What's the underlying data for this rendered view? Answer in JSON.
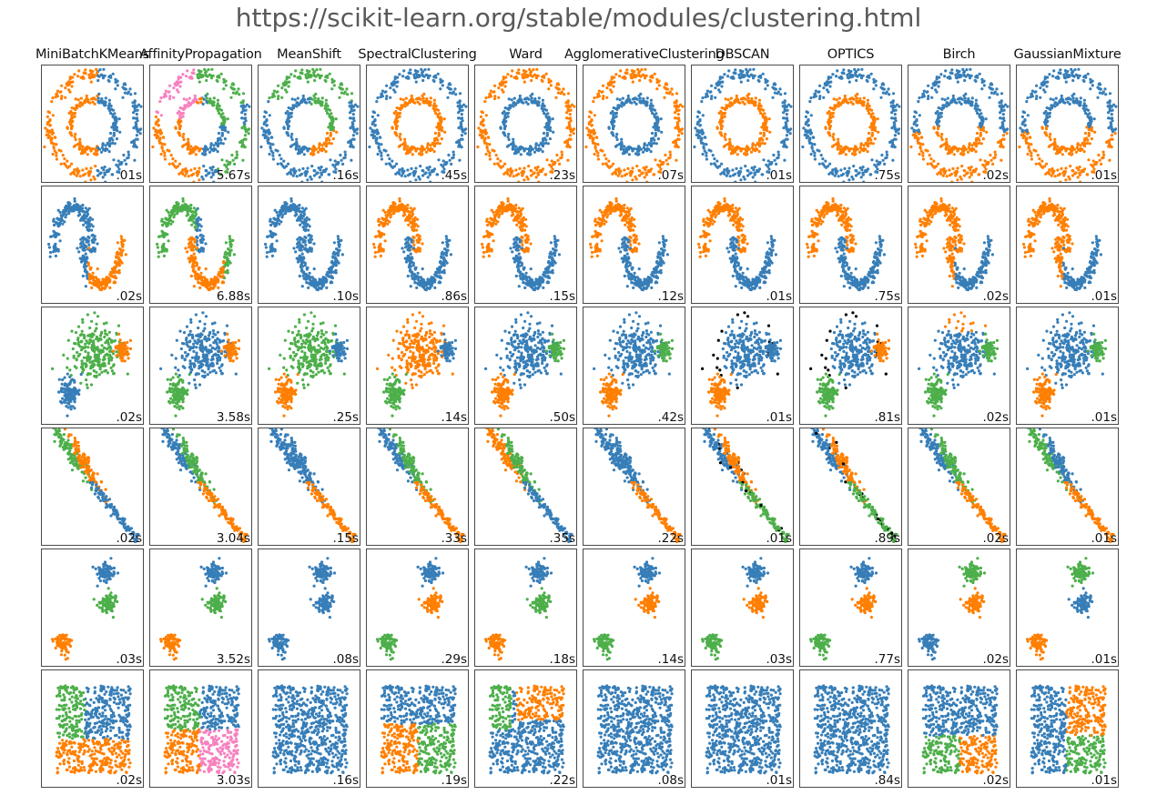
{
  "page_title": "https://scikit-learn.org/stable/modules/clustering.html",
  "colors": {
    "blue": "#377eb8",
    "orange": "#ff7f00",
    "green": "#4daf4a",
    "pink": "#f781bf",
    "black": "#000000"
  },
  "algorithms": [
    "MiniBatchKMeans",
    "AffinityPropagation",
    "MeanShift",
    "SpectralClustering",
    "Ward",
    "AgglomerativeClustering",
    "DBSCAN",
    "OPTICS",
    "Birch",
    "GaussianMixture"
  ],
  "datasets": [
    "noisy-circles",
    "noisy-moons",
    "varied",
    "aniso",
    "blobs",
    "no-structure"
  ],
  "times": [
    [
      ".01s",
      "5.67s",
      ".16s",
      ".45s",
      ".23s",
      ".07s",
      ".01s",
      ".75s",
      ".02s",
      ".01s"
    ],
    [
      ".02s",
      "6.88s",
      ".10s",
      ".86s",
      ".15s",
      ".12s",
      ".01s",
      ".75s",
      ".02s",
      ".01s"
    ],
    [
      ".02s",
      "3.58s",
      ".25s",
      ".14s",
      ".50s",
      ".42s",
      ".01s",
      ".81s",
      ".02s",
      ".01s"
    ],
    [
      ".02s",
      "3.04s",
      ".15s",
      ".33s",
      ".35s",
      ".22s",
      ".01s",
      ".89s",
      ".02s",
      ".01s"
    ],
    [
      ".03s",
      "3.52s",
      ".08s",
      ".29s",
      ".18s",
      ".14s",
      ".03s",
      ".77s",
      ".02s",
      ".01s"
    ],
    [
      ".02s",
      "3.03s",
      ".16s",
      ".19s",
      ".22s",
      ".08s",
      ".01s",
      ".84s",
      ".02s",
      ".01s"
    ]
  ],
  "cluster_colorings": [
    [
      "split-lr:orange,blue",
      "ap-circles",
      "circles-ms",
      "rings:orange-inner,blue-outer",
      "rings:blue-inner,orange-outer",
      "rings:blue-inner,orange-outer",
      "rings:orange-inner,blue-outer",
      "rings:orange-inner,blue-outer",
      "split-tb:blue,orange",
      "split-tb:blue,orange"
    ],
    [
      "moons-split:blue,orange",
      "moons-ap",
      "moons-split:blue,blue",
      "moons:orange-top,blue-bottom",
      "moons:orange-top,blue-bottom",
      "moons:orange-top,blue-bottom",
      "moons:orange-top,blue-bottom",
      "moons:orange-top,blue-bottom",
      "moons-split:orange,blue",
      "moons-split:orange,blue"
    ],
    [
      "varied:green,orange,blue",
      "varied:blue,orange,green",
      "varied:green,blue,orange",
      "varied:orange,blue,green",
      "varied:blue,green,orange",
      "varied:blue,green,orange",
      "varied:blue,blue,orange,noise",
      "varied:blue,orange,green,noise",
      "varied:blue,blue,green",
      "varied:blue,green,orange"
    ],
    [
      "aniso:green,orange,blue",
      "aniso:blue,green,orange",
      "aniso:blue,blue,orange",
      "aniso:blue,green,orange",
      "aniso:orange,green,blue",
      "aniso:blue,blue,orange",
      "aniso:blue,orange,green,noise",
      "aniso:blue,orange,green,noise",
      "aniso:blue,green,orange",
      "aniso:green,blue,orange"
    ],
    [
      "blobs:blue,green,orange",
      "blobs:blue,green,orange",
      "blobs:blue,blue,blue",
      "blobs:blue,orange,green",
      "blobs:blue,green,orange",
      "blobs:blue,orange,green",
      "blobs:blue,orange,green",
      "blobs:blue,orange,green",
      "blobs:green,orange,blue",
      "blobs:green,blue,orange"
    ],
    [
      "square:kmeans",
      "square:ap",
      "square:blue",
      "square:spectral",
      "square:ward",
      "square:blue",
      "square:blue",
      "square:blue",
      "square:birch",
      "square:gmm"
    ]
  ]
}
